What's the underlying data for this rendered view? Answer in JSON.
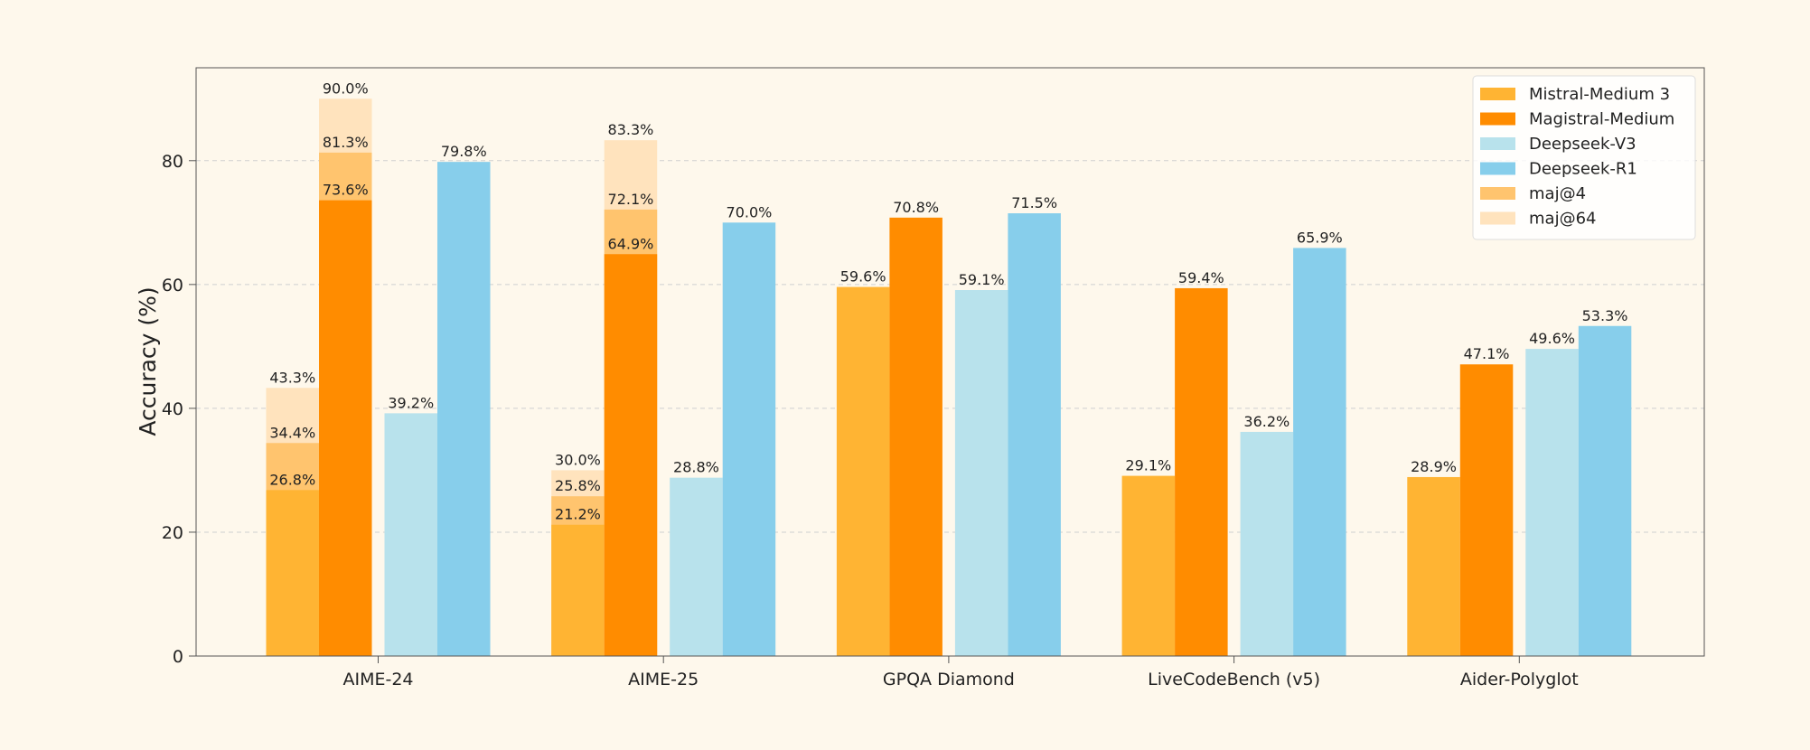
{
  "chart_data": {
    "type": "bar",
    "title": "",
    "xlabel": "",
    "ylabel": "Accuracy (%)",
    "ylim": [
      0,
      95
    ],
    "yticks": [
      0,
      20,
      40,
      60,
      80
    ],
    "grid": true,
    "legend_position": "top-right",
    "categories": [
      "AIME-24",
      "AIME-25",
      "GPQA Diamond",
      "LiveCodeBench (v5)",
      "Aider-Polyglot"
    ],
    "series": [
      {
        "name": "Mistral-Medium 3",
        "color": "#ffb433",
        "values": [
          26.8,
          21.2,
          59.6,
          29.1,
          28.9
        ]
      },
      {
        "name": "Magistral-Medium",
        "color": "#ff8c00",
        "values": [
          73.6,
          64.9,
          70.8,
          59.4,
          47.1
        ]
      },
      {
        "name": "Deepseek-V3",
        "color": "#b8e2ec",
        "values": [
          39.2,
          28.8,
          59.1,
          36.2,
          49.6
        ]
      },
      {
        "name": "Deepseek-R1",
        "color": "#87ceeb",
        "values": [
          79.8,
          70.0,
          71.5,
          65.9,
          53.3
        ]
      }
    ],
    "overlays": [
      {
        "name": "maj@4",
        "color": "#ffc46e",
        "applies_to": [
          "Mistral-Medium 3",
          "Magistral-Medium"
        ],
        "values": {
          "Mistral-Medium 3": [
            34.4,
            25.8,
            null,
            null,
            null
          ],
          "Magistral-Medium": [
            81.3,
            72.1,
            null,
            null,
            null
          ]
        }
      },
      {
        "name": "maj@64",
        "color": "#ffe3bd",
        "applies_to": [
          "Mistral-Medium 3",
          "Magistral-Medium"
        ],
        "values": {
          "Mistral-Medium 3": [
            43.3,
            30.0,
            null,
            null,
            null
          ],
          "Magistral-Medium": [
            90.0,
            83.3,
            null,
            null,
            null
          ]
        }
      }
    ],
    "value_label_format": "{v}%"
  }
}
